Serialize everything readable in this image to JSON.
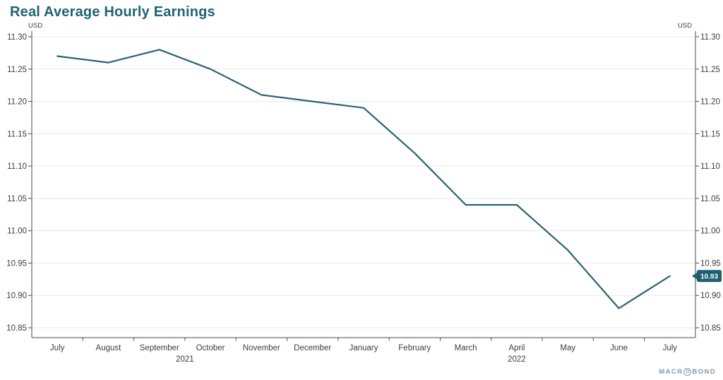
{
  "chart_data": {
    "type": "line",
    "title": "Real Average Hourly Earnings",
    "unit_left": "USD",
    "unit_right": "USD",
    "categories": [
      "July",
      "August",
      "September",
      "October",
      "November",
      "December",
      "January",
      "February",
      "March",
      "April",
      "May",
      "June",
      "July"
    ],
    "year_groups": [
      {
        "label": "2021",
        "start": 0,
        "end": 5
      },
      {
        "label": "2022",
        "start": 6,
        "end": 12
      }
    ],
    "values": [
      11.27,
      11.26,
      11.28,
      11.25,
      11.21,
      11.2,
      11.19,
      11.12,
      11.04,
      11.04,
      10.97,
      10.88,
      10.93
    ],
    "ylim": [
      10.85,
      11.3
    ],
    "y_ticks": [
      "11.30",
      "11.25",
      "11.20",
      "11.15",
      "11.10",
      "11.05",
      "11.00",
      "10.95",
      "10.90",
      "10.85"
    ],
    "last_value_label": "10.93",
    "grid": true,
    "legend": "none",
    "colors": {
      "title": "#1e6474",
      "line": "#2b6374",
      "badge_bg": "#1d5f70",
      "badge_text": "#ffffff",
      "grid": "#e9e9e9",
      "axis": "#4a4a4a",
      "label": "#3d3d3d",
      "logo": "#8696ac"
    }
  },
  "logo": {
    "part1": "MACR",
    "part2": "O",
    "part3": "BOND"
  }
}
